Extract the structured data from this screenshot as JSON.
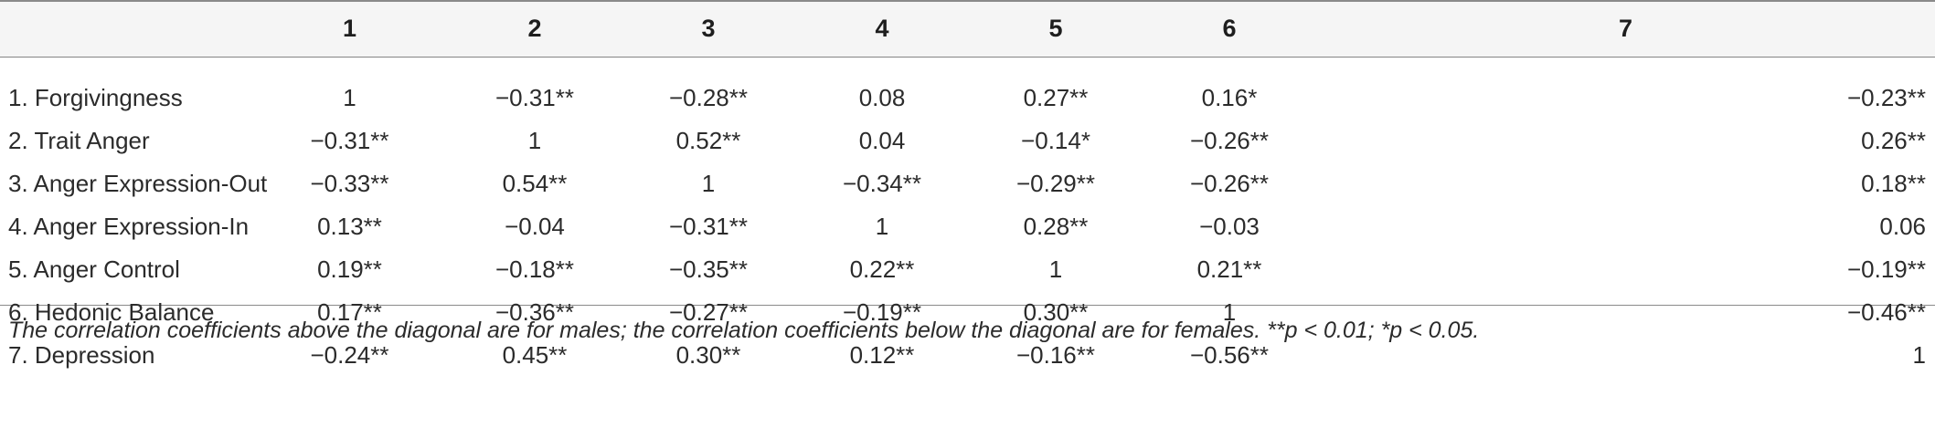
{
  "table": {
    "columns": [
      "",
      "1",
      "2",
      "3",
      "4",
      "5",
      "6",
      "7"
    ],
    "rows": [
      {
        "label": "1. Forgivingness",
        "cells": [
          "1",
          "−0.31**",
          "−0.28**",
          "0.08",
          "0.27**",
          "0.16*",
          "−0.23**"
        ]
      },
      {
        "label": "2. Trait Anger",
        "cells": [
          "−0.31**",
          "1",
          "0.52**",
          "0.04",
          "−0.14*",
          "−0.26**",
          "0.26**"
        ]
      },
      {
        "label": "3. Anger Expression-Out",
        "cells": [
          "−0.33**",
          "0.54**",
          "1",
          "−0.34**",
          "−0.29**",
          "−0.26**",
          "0.18**"
        ]
      },
      {
        "label": "4. Anger Expression-In",
        "cells": [
          "0.13**",
          "−0.04",
          "−0.31**",
          "1",
          "0.28**",
          "−0.03",
          "0.06"
        ]
      },
      {
        "label": "5. Anger Control",
        "cells": [
          "0.19**",
          "−0.18**",
          "−0.35**",
          "0.22**",
          "1",
          "0.21**",
          "−0.19**"
        ]
      },
      {
        "label": "6. Hedonic Balance",
        "cells": [
          "0.17**",
          "−0.36**",
          "−0.27**",
          "−0.19**",
          "0.30**",
          "1",
          "−0.46**"
        ]
      },
      {
        "label": "7. Depression",
        "cells": [
          "−0.24**",
          "0.45**",
          "0.30**",
          "0.12**",
          "−0.16**",
          "−0.56**",
          "1"
        ]
      }
    ]
  },
  "footnote": "The correlation coefficients above the diagonal are for males; the correlation coefficients below the diagonal are for females. **p < 0.01; *p < 0.05.",
  "colors": {
    "header_background": "#f5f5f5",
    "rule": "#8a8a8a",
    "text": "#2b2b2b"
  }
}
